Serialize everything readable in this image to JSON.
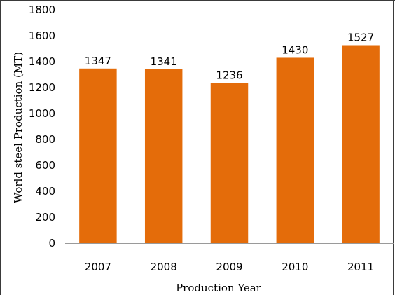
{
  "chart_data": {
    "type": "bar",
    "title": "",
    "xlabel": "Production Year",
    "ylabel": "World steel Production (MT)",
    "categories": [
      "2007",
      "2008",
      "2009",
      "2010",
      "2011"
    ],
    "values": [
      1347,
      1341,
      1236,
      1430,
      1527
    ],
    "data_labels": [
      "1347",
      "1341",
      "1236",
      "1430",
      "1527"
    ],
    "ylim": [
      0,
      1800
    ],
    "yticks": [
      "0",
      "200",
      "400",
      "600",
      "800",
      "1000",
      "1200",
      "1400",
      "1600",
      "1800"
    ],
    "bar_color": "#E46C0A",
    "grid": false,
    "legend": "none"
  }
}
